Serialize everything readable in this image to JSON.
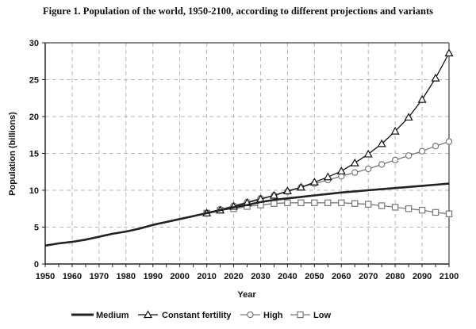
{
  "chart_data": {
    "type": "line",
    "title": "Figure 1.  Population of the world, 1950-2100, according to different projections and variants",
    "xlabel": "Year",
    "ylabel": "Population (billions)",
    "xlim": [
      1950,
      2100
    ],
    "ylim": [
      0,
      30
    ],
    "xticks": [
      "1950",
      "1960",
      "1970",
      "1980",
      "1990",
      "2000",
      "2010",
      "2020",
      "2030",
      "2040",
      "2050",
      "2060",
      "2070",
      "2080",
      "2090",
      "2100"
    ],
    "yticks": [
      "0",
      "5",
      "10",
      "15",
      "20",
      "25",
      "30"
    ],
    "grid": true,
    "legend_position": "bottom",
    "series": [
      {
        "name": "Medium",
        "color": "#222222",
        "marker": "none",
        "x": [
          1950,
          1955,
          1960,
          1965,
          1970,
          1975,
          1980,
          1985,
          1990,
          1995,
          2000,
          2005,
          2010,
          2015,
          2020,
          2025,
          2030,
          2035,
          2040,
          2045,
          2050,
          2055,
          2060,
          2065,
          2070,
          2075,
          2080,
          2085,
          2090,
          2095,
          2100
        ],
        "values": [
          2.5,
          2.8,
          3.0,
          3.3,
          3.7,
          4.1,
          4.4,
          4.8,
          5.3,
          5.7,
          6.1,
          6.5,
          6.9,
          7.3,
          7.7,
          8.0,
          8.4,
          8.7,
          8.9,
          9.1,
          9.3,
          9.5,
          9.7,
          9.85,
          10.0,
          10.15,
          10.3,
          10.45,
          10.6,
          10.75,
          10.9
        ]
      },
      {
        "name": "Constant fertility",
        "color": "#111111",
        "marker": "triangle",
        "x": [
          2010,
          2015,
          2020,
          2025,
          2030,
          2035,
          2040,
          2045,
          2050,
          2055,
          2060,
          2065,
          2070,
          2075,
          2080,
          2085,
          2090,
          2095,
          2100
        ],
        "values": [
          6.9,
          7.3,
          7.8,
          8.3,
          8.8,
          9.3,
          9.9,
          10.4,
          11.1,
          11.8,
          12.6,
          13.7,
          14.9,
          16.3,
          18.0,
          19.9,
          22.3,
          25.2,
          28.6
        ]
      },
      {
        "name": "High",
        "color": "#777777",
        "marker": "circle",
        "x": [
          2010,
          2015,
          2020,
          2025,
          2030,
          2035,
          2040,
          2045,
          2050,
          2055,
          2060,
          2065,
          2070,
          2075,
          2080,
          2085,
          2090,
          2095,
          2100
        ],
        "values": [
          6.9,
          7.4,
          7.9,
          8.4,
          8.9,
          9.3,
          9.8,
          10.4,
          10.9,
          11.4,
          11.9,
          12.4,
          12.9,
          13.5,
          14.1,
          14.7,
          15.3,
          16.0,
          16.6
        ]
      },
      {
        "name": "Low",
        "color": "#777777",
        "marker": "square",
        "x": [
          2010,
          2015,
          2020,
          2025,
          2030,
          2035,
          2040,
          2045,
          2050,
          2055,
          2060,
          2065,
          2070,
          2075,
          2080,
          2085,
          2090,
          2095,
          2100
        ],
        "values": [
          6.9,
          7.3,
          7.5,
          7.8,
          8.0,
          8.2,
          8.3,
          8.3,
          8.3,
          8.3,
          8.3,
          8.2,
          8.1,
          7.9,
          7.7,
          7.5,
          7.3,
          7.0,
          6.8
        ]
      }
    ]
  }
}
